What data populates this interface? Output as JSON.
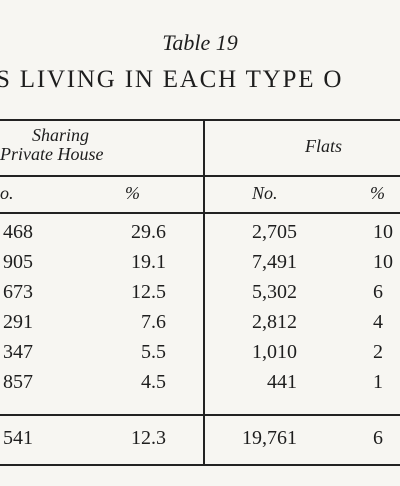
{
  "table": {
    "title": "Table 19",
    "subtitle": "S LIVING IN EACH TYPE O",
    "group_headers": {
      "sharing_line1": "Sharing",
      "sharing_line2": "Private House",
      "flats": "Flats"
    },
    "sub_headers": {
      "sharing_no": "o.",
      "sharing_pct": "%",
      "flats_no": "No.",
      "flats_pct": "%"
    },
    "rows": [
      {
        "sharing_no": "468",
        "sharing_pct": "29.6",
        "flats_no": "2,705",
        "flats_pct": "10"
      },
      {
        "sharing_no": "905",
        "sharing_pct": "19.1",
        "flats_no": "7,491",
        "flats_pct": "10"
      },
      {
        "sharing_no": "673",
        "sharing_pct": "12.5",
        "flats_no": "5,302",
        "flats_pct": "6"
      },
      {
        "sharing_no": "291",
        "sharing_pct": "7.6",
        "flats_no": "2,812",
        "flats_pct": "4"
      },
      {
        "sharing_no": "347",
        "sharing_pct": "5.5",
        "flats_no": "1,010",
        "flats_pct": "2"
      },
      {
        "sharing_no": "857",
        "sharing_pct": "4.5",
        "flats_no": "441",
        "flats_pct": "1"
      }
    ],
    "total": {
      "sharing_no": "541",
      "sharing_pct": "12.3",
      "flats_no": "19,761",
      "flats_pct": "6"
    }
  }
}
